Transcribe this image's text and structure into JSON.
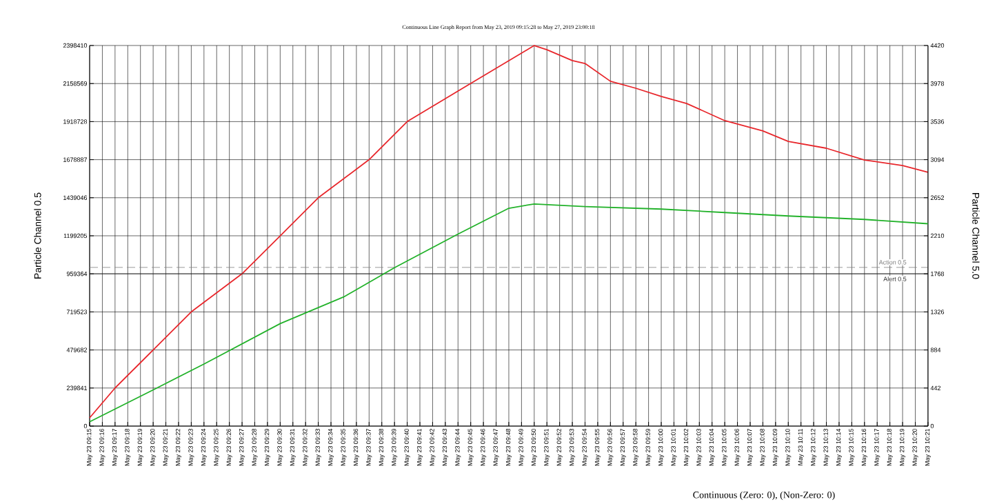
{
  "chart_data": {
    "type": "line",
    "subtitle": "Continuous Line  Graph Report from May 23, 2019 09:15:28 to May 27, 2019 23:00:18",
    "ylabel": "Particle Channel 0.5",
    "y2label": "Particle Channel 5.0",
    "annotations": [
      "Continuous (Zero: 0),  (Non-Zero: 0)"
    ],
    "xlim": [
      "2019-05-23T09:15",
      "2019-05-23T10:21"
    ],
    "ylim": [
      0,
      2398410
    ],
    "y2lim": [
      0,
      4420
    ],
    "yticks": [
      0,
      239841,
      479682,
      719523,
      959364,
      1199205,
      1439046,
      1678887,
      1918728,
      2158569,
      2398410
    ],
    "y2ticks": [
      0,
      442,
      884,
      1326,
      1768,
      2210,
      2652,
      3094,
      3536,
      3978,
      4420
    ],
    "xticks": [
      {
        "value": "2019-05-23T09:15",
        "label": "May 23 09:15"
      },
      {
        "value": "2019-05-23T09:16",
        "label": "May 23 09:16"
      },
      {
        "value": "2019-05-23T09:17",
        "label": "May 23 09:17"
      },
      {
        "value": "2019-05-23T09:18",
        "label": "May 23 09:18"
      },
      {
        "value": "2019-05-23T09:19",
        "label": "May 23 09:19"
      },
      {
        "value": "2019-05-23T09:20",
        "label": "May 23 09:20"
      },
      {
        "value": "2019-05-23T09:21",
        "label": "May 23 09:21"
      },
      {
        "value": "2019-05-23T09:22",
        "label": "May 23 09:22"
      },
      {
        "value": "2019-05-23T09:23",
        "label": "May 23 09:23"
      },
      {
        "value": "2019-05-23T09:24",
        "label": "May 23 09:24"
      },
      {
        "value": "2019-05-23T09:25",
        "label": "May 23 09:25"
      },
      {
        "value": "2019-05-23T09:26",
        "label": "May 23 09:26"
      },
      {
        "value": "2019-05-23T09:27",
        "label": "May 23 09:27"
      },
      {
        "value": "2019-05-23T09:28",
        "label": "May 23 09:28"
      },
      {
        "value": "2019-05-23T09:29",
        "label": "May 23 09:29"
      },
      {
        "value": "2019-05-23T09:30",
        "label": "May 23 09:30"
      },
      {
        "value": "2019-05-23T09:31",
        "label": "May 23 09:31"
      },
      {
        "value": "2019-05-23T09:32",
        "label": "May 23 09:32"
      },
      {
        "value": "2019-05-23T09:33",
        "label": "May 23 09:33"
      },
      {
        "value": "2019-05-23T09:34",
        "label": "May 23 09:34"
      },
      {
        "value": "2019-05-23T09:35",
        "label": "May 23 09:35"
      },
      {
        "value": "2019-05-23T09:36",
        "label": "May 23 09:36"
      },
      {
        "value": "2019-05-23T09:37",
        "label": "May 23 09:37"
      },
      {
        "value": "2019-05-23T09:38",
        "label": "May 23 09:38"
      },
      {
        "value": "2019-05-23T09:39",
        "label": "May 23 09:39"
      },
      {
        "value": "2019-05-23T09:40",
        "label": "May 23 09:40"
      },
      {
        "value": "2019-05-23T09:41",
        "label": "May 23 09:41"
      },
      {
        "value": "2019-05-23T09:42",
        "label": "May 23 09:42"
      },
      {
        "value": "2019-05-23T09:43",
        "label": "May 23 09:43"
      },
      {
        "value": "2019-05-23T09:44",
        "label": "May 23 09:44"
      },
      {
        "value": "2019-05-23T09:45",
        "label": "May 23 09:45"
      },
      {
        "value": "2019-05-23T09:46",
        "label": "May 23 09:46"
      },
      {
        "value": "2019-05-23T09:47",
        "label": "May 23 09:47"
      },
      {
        "value": "2019-05-23T09:48",
        "label": "May 23 09:48"
      },
      {
        "value": "2019-05-23T09:49",
        "label": "May 23 09:49"
      },
      {
        "value": "2019-05-23T09:50",
        "label": "May 23 09:50"
      },
      {
        "value": "2019-05-23T09:51",
        "label": "May 23 09:51"
      },
      {
        "value": "2019-05-23T09:52",
        "label": "May 23 09:52"
      },
      {
        "value": "2019-05-23T09:53",
        "label": "May 23 09:53"
      },
      {
        "value": "2019-05-23T09:54",
        "label": "May 23 09:54"
      },
      {
        "value": "2019-05-23T09:55",
        "label": "May 23 09:55"
      },
      {
        "value": "2019-05-23T09:56",
        "label": "May 23 09:56"
      },
      {
        "value": "2019-05-23T09:57",
        "label": "May 23 09:57"
      },
      {
        "value": "2019-05-23T09:58",
        "label": "May 23 09:58"
      },
      {
        "value": "2019-05-23T09:59",
        "label": "May 23 09:59"
      },
      {
        "value": "2019-05-23T10:00",
        "label": "May 23 10:00"
      },
      {
        "value": "2019-05-23T10:01",
        "label": "May 23 10:01"
      },
      {
        "value": "2019-05-23T10:02",
        "label": "May 23 10:02"
      },
      {
        "value": "2019-05-23T10:03",
        "label": "May 23 10:03"
      },
      {
        "value": "2019-05-23T10:04",
        "label": "May 23 10:04"
      },
      {
        "value": "2019-05-23T10:05",
        "label": "May 23 10:05"
      },
      {
        "value": "2019-05-23T10:06",
        "label": "May 23 10:06"
      },
      {
        "value": "2019-05-23T10:07",
        "label": "May 23 10:07"
      },
      {
        "value": "2019-05-23T10:08",
        "label": "May 23 10:08"
      },
      {
        "value": "2019-05-23T10:09",
        "label": "May 23 10:09"
      },
      {
        "value": "2019-05-23T10:10",
        "label": "May 23 10:10"
      },
      {
        "value": "2019-05-23T10:11",
        "label": "May 23 10:11"
      },
      {
        "value": "2019-05-23T10:12",
        "label": "May 23 10:12"
      },
      {
        "value": "2019-05-23T10:13",
        "label": "May 23 10:13"
      },
      {
        "value": "2019-05-23T10:14",
        "label": "May 23 10:14"
      },
      {
        "value": "2019-05-23T10:15",
        "label": "May 23 10:15"
      },
      {
        "value": "2019-05-23T10:16",
        "label": "May 23 10:16"
      },
      {
        "value": "2019-05-23T10:17",
        "label": "May 23 10:17"
      },
      {
        "value": "2019-05-23T10:18",
        "label": "May 23 10:18"
      },
      {
        "value": "2019-05-23T10:19",
        "label": "May 23 10:19"
      },
      {
        "value": "2019-05-23T10:20",
        "label": "May 23 10:20"
      },
      {
        "value": "2019-05-23T10:21",
        "label": "May 23 10:21"
      }
    ],
    "grid": true,
    "ref_lines": [
      {
        "axis": "y",
        "value": 1000000,
        "label": "Action 0.5",
        "color": "#808080",
        "line_style": "dashed"
      },
      {
        "axis": "y",
        "value": 960000,
        "label": "Alert 0.5",
        "color": "#303030",
        "line_style": "solid"
      }
    ],
    "series": [
      {
        "color": "#e8262b",
        "x": [
          "2019-05-23T09:15",
          "2019-05-23T09:17",
          "2019-05-23T09:20",
          "2019-05-23T09:23",
          "2019-05-23T09:27",
          "2019-05-23T09:30",
          "2019-05-23T09:33",
          "2019-05-23T09:37",
          "2019-05-23T09:40",
          "2019-05-23T09:45",
          "2019-05-23T09:50",
          "2019-05-23T09:51",
          "2019-05-23T09:53",
          "2019-05-23T09:54",
          "2019-05-23T09:56",
          "2019-05-23T09:58",
          "2019-05-23T10:00",
          "2019-05-23T10:02",
          "2019-05-23T10:05",
          "2019-05-23T10:08",
          "2019-05-23T10:10",
          "2019-05-23T10:13",
          "2019-05-23T10:16",
          "2019-05-23T10:19",
          "2019-05-23T10:21"
        ],
        "values": [
          52000,
          240000,
          480000,
          720000,
          960000,
          1199000,
          1439000,
          1679000,
          1919000,
          2159000,
          2398000,
          2372000,
          2303000,
          2285000,
          2173000,
          2129000,
          2077000,
          2033000,
          1925000,
          1860000,
          1794000,
          1751000,
          1677000,
          1642000,
          1599000
        ]
      },
      {
        "color": "#22b22a",
        "axis": "y2",
        "x": [
          "2019-05-23T09:15",
          "2019-05-23T09:20",
          "2019-05-23T09:24",
          "2019-05-23T09:30",
          "2019-05-23T09:35",
          "2019-05-23T09:39",
          "2019-05-23T09:44",
          "2019-05-23T09:48",
          "2019-05-23T09:50",
          "2019-05-23T09:54",
          "2019-05-23T10:00",
          "2019-05-23T10:05",
          "2019-05-23T10:10",
          "2019-05-23T10:16",
          "2019-05-23T10:21"
        ],
        "values": [
          50,
          420,
          720,
          1190,
          1500,
          1840,
          2230,
          2530,
          2580,
          2550,
          2520,
          2480,
          2440,
          2400,
          2350
        ]
      }
    ]
  }
}
